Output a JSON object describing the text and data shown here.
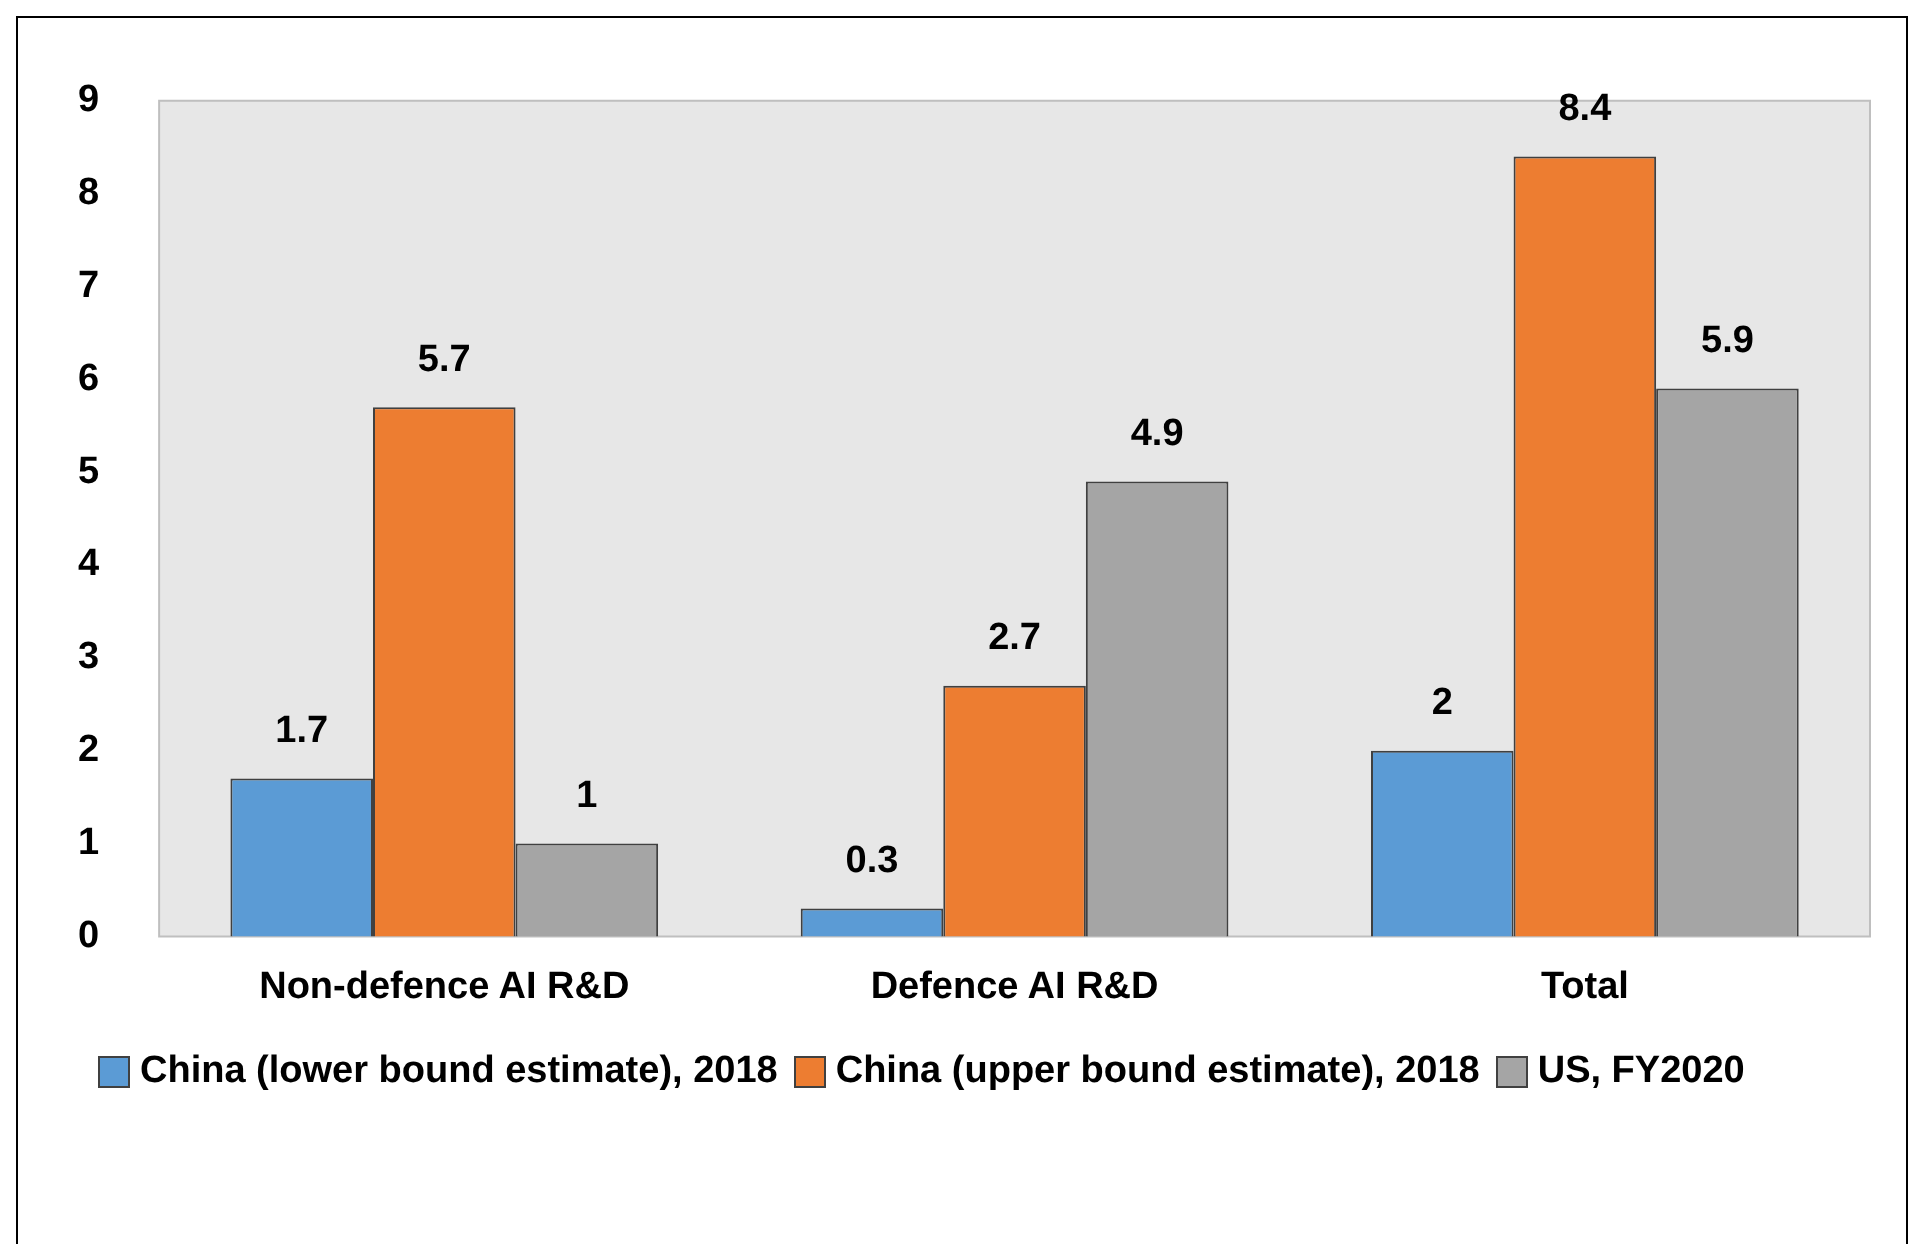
{
  "chart_data": {
    "type": "bar",
    "categories": [
      "Non-defence AI R&D",
      "Defence AI R&D",
      "Total"
    ],
    "series": [
      {
        "name": "China (lower bound estimate), 2018",
        "color": "#5b9bd5",
        "values": [
          1.7,
          0.3,
          2
        ]
      },
      {
        "name": "China (upper bound estimate), 2018",
        "color": "#ed7d31",
        "values": [
          5.7,
          2.7,
          8.4
        ]
      },
      {
        "name": "US, FY2020",
        "color": "#a5a5a5",
        "values": [
          1,
          4.9,
          5.9
        ]
      }
    ],
    "ylim": [
      0,
      9
    ],
    "yticks": [
      0,
      1,
      2,
      3,
      4,
      5,
      6,
      7,
      8,
      9
    ],
    "grid": false,
    "legend": "bottom",
    "data_labels": true
  }
}
